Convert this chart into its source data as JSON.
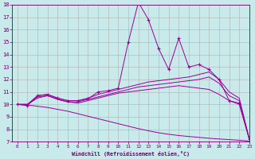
{
  "xlabel": "Windchill (Refroidissement éolien,°C)",
  "bg_color": "#c8eaea",
  "line_color": "#990099",
  "grid_color": "#b0b0b0",
  "xlim": [
    -0.5,
    23
  ],
  "ylim": [
    7,
    18
  ],
  "xticks": [
    0,
    1,
    2,
    3,
    4,
    5,
    6,
    7,
    8,
    9,
    10,
    11,
    12,
    13,
    14,
    15,
    16,
    17,
    18,
    19,
    20,
    21,
    22,
    23
  ],
  "yticks": [
    7,
    8,
    9,
    10,
    11,
    12,
    13,
    14,
    15,
    16,
    17,
    18
  ],
  "lines": [
    {
      "x": [
        0,
        1,
        2,
        3,
        4,
        5,
        6,
        7,
        8,
        9,
        10,
        11,
        12,
        13,
        14,
        15,
        16,
        17,
        18,
        19,
        20,
        21,
        22,
        23
      ],
      "y": [
        10.0,
        9.9,
        10.7,
        10.8,
        10.5,
        10.3,
        10.3,
        10.45,
        11.0,
        11.1,
        11.3,
        15.0,
        18.2,
        16.8,
        14.5,
        12.8,
        15.3,
        13.0,
        13.2,
        12.8,
        12.0,
        10.3,
        10.1,
        7.2
      ],
      "marker": "+"
    },
    {
      "x": [
        0,
        1,
        2,
        3,
        4,
        5,
        6,
        7,
        8,
        9,
        10,
        11,
        12,
        13,
        14,
        15,
        16,
        17,
        18,
        19,
        20,
        21,
        22,
        23
      ],
      "y": [
        10.0,
        10.0,
        10.7,
        10.8,
        10.5,
        10.3,
        10.3,
        10.5,
        10.8,
        11.0,
        11.2,
        11.4,
        11.6,
        11.8,
        11.9,
        12.0,
        12.1,
        12.2,
        12.4,
        12.6,
        12.0,
        11.0,
        10.5,
        7.2
      ],
      "marker": null
    },
    {
      "x": [
        0,
        1,
        2,
        3,
        4,
        5,
        6,
        7,
        8,
        9,
        10,
        11,
        12,
        13,
        14,
        15,
        16,
        17,
        18,
        19,
        20,
        21,
        22,
        23
      ],
      "y": [
        10.0,
        10.0,
        10.6,
        10.7,
        10.4,
        10.2,
        10.2,
        10.4,
        10.6,
        10.8,
        11.0,
        11.2,
        11.4,
        11.5,
        11.6,
        11.7,
        11.8,
        11.9,
        12.0,
        12.2,
        11.7,
        10.7,
        10.3,
        7.2
      ],
      "marker": null
    },
    {
      "x": [
        0,
        1,
        2,
        3,
        4,
        5,
        6,
        7,
        8,
        9,
        10,
        11,
        12,
        13,
        14,
        15,
        16,
        17,
        18,
        19,
        20,
        21,
        22,
        23
      ],
      "y": [
        10.0,
        10.0,
        10.5,
        10.7,
        10.4,
        10.2,
        10.1,
        10.3,
        10.5,
        10.7,
        10.9,
        11.0,
        11.1,
        11.2,
        11.3,
        11.4,
        11.5,
        11.4,
        11.3,
        11.2,
        10.8,
        10.3,
        10.0,
        7.2
      ],
      "marker": null
    },
    {
      "x": [
        0,
        1,
        2,
        3,
        4,
        5,
        6,
        7,
        8,
        9,
        10,
        11,
        12,
        13,
        14,
        15,
        16,
        17,
        18,
        19,
        20,
        21,
        22,
        23
      ],
      "y": [
        10.0,
        9.95,
        9.85,
        9.75,
        9.6,
        9.45,
        9.25,
        9.05,
        8.85,
        8.65,
        8.45,
        8.25,
        8.05,
        7.88,
        7.72,
        7.6,
        7.5,
        7.42,
        7.35,
        7.28,
        7.22,
        7.17,
        7.12,
        7.05
      ],
      "marker": null
    }
  ]
}
